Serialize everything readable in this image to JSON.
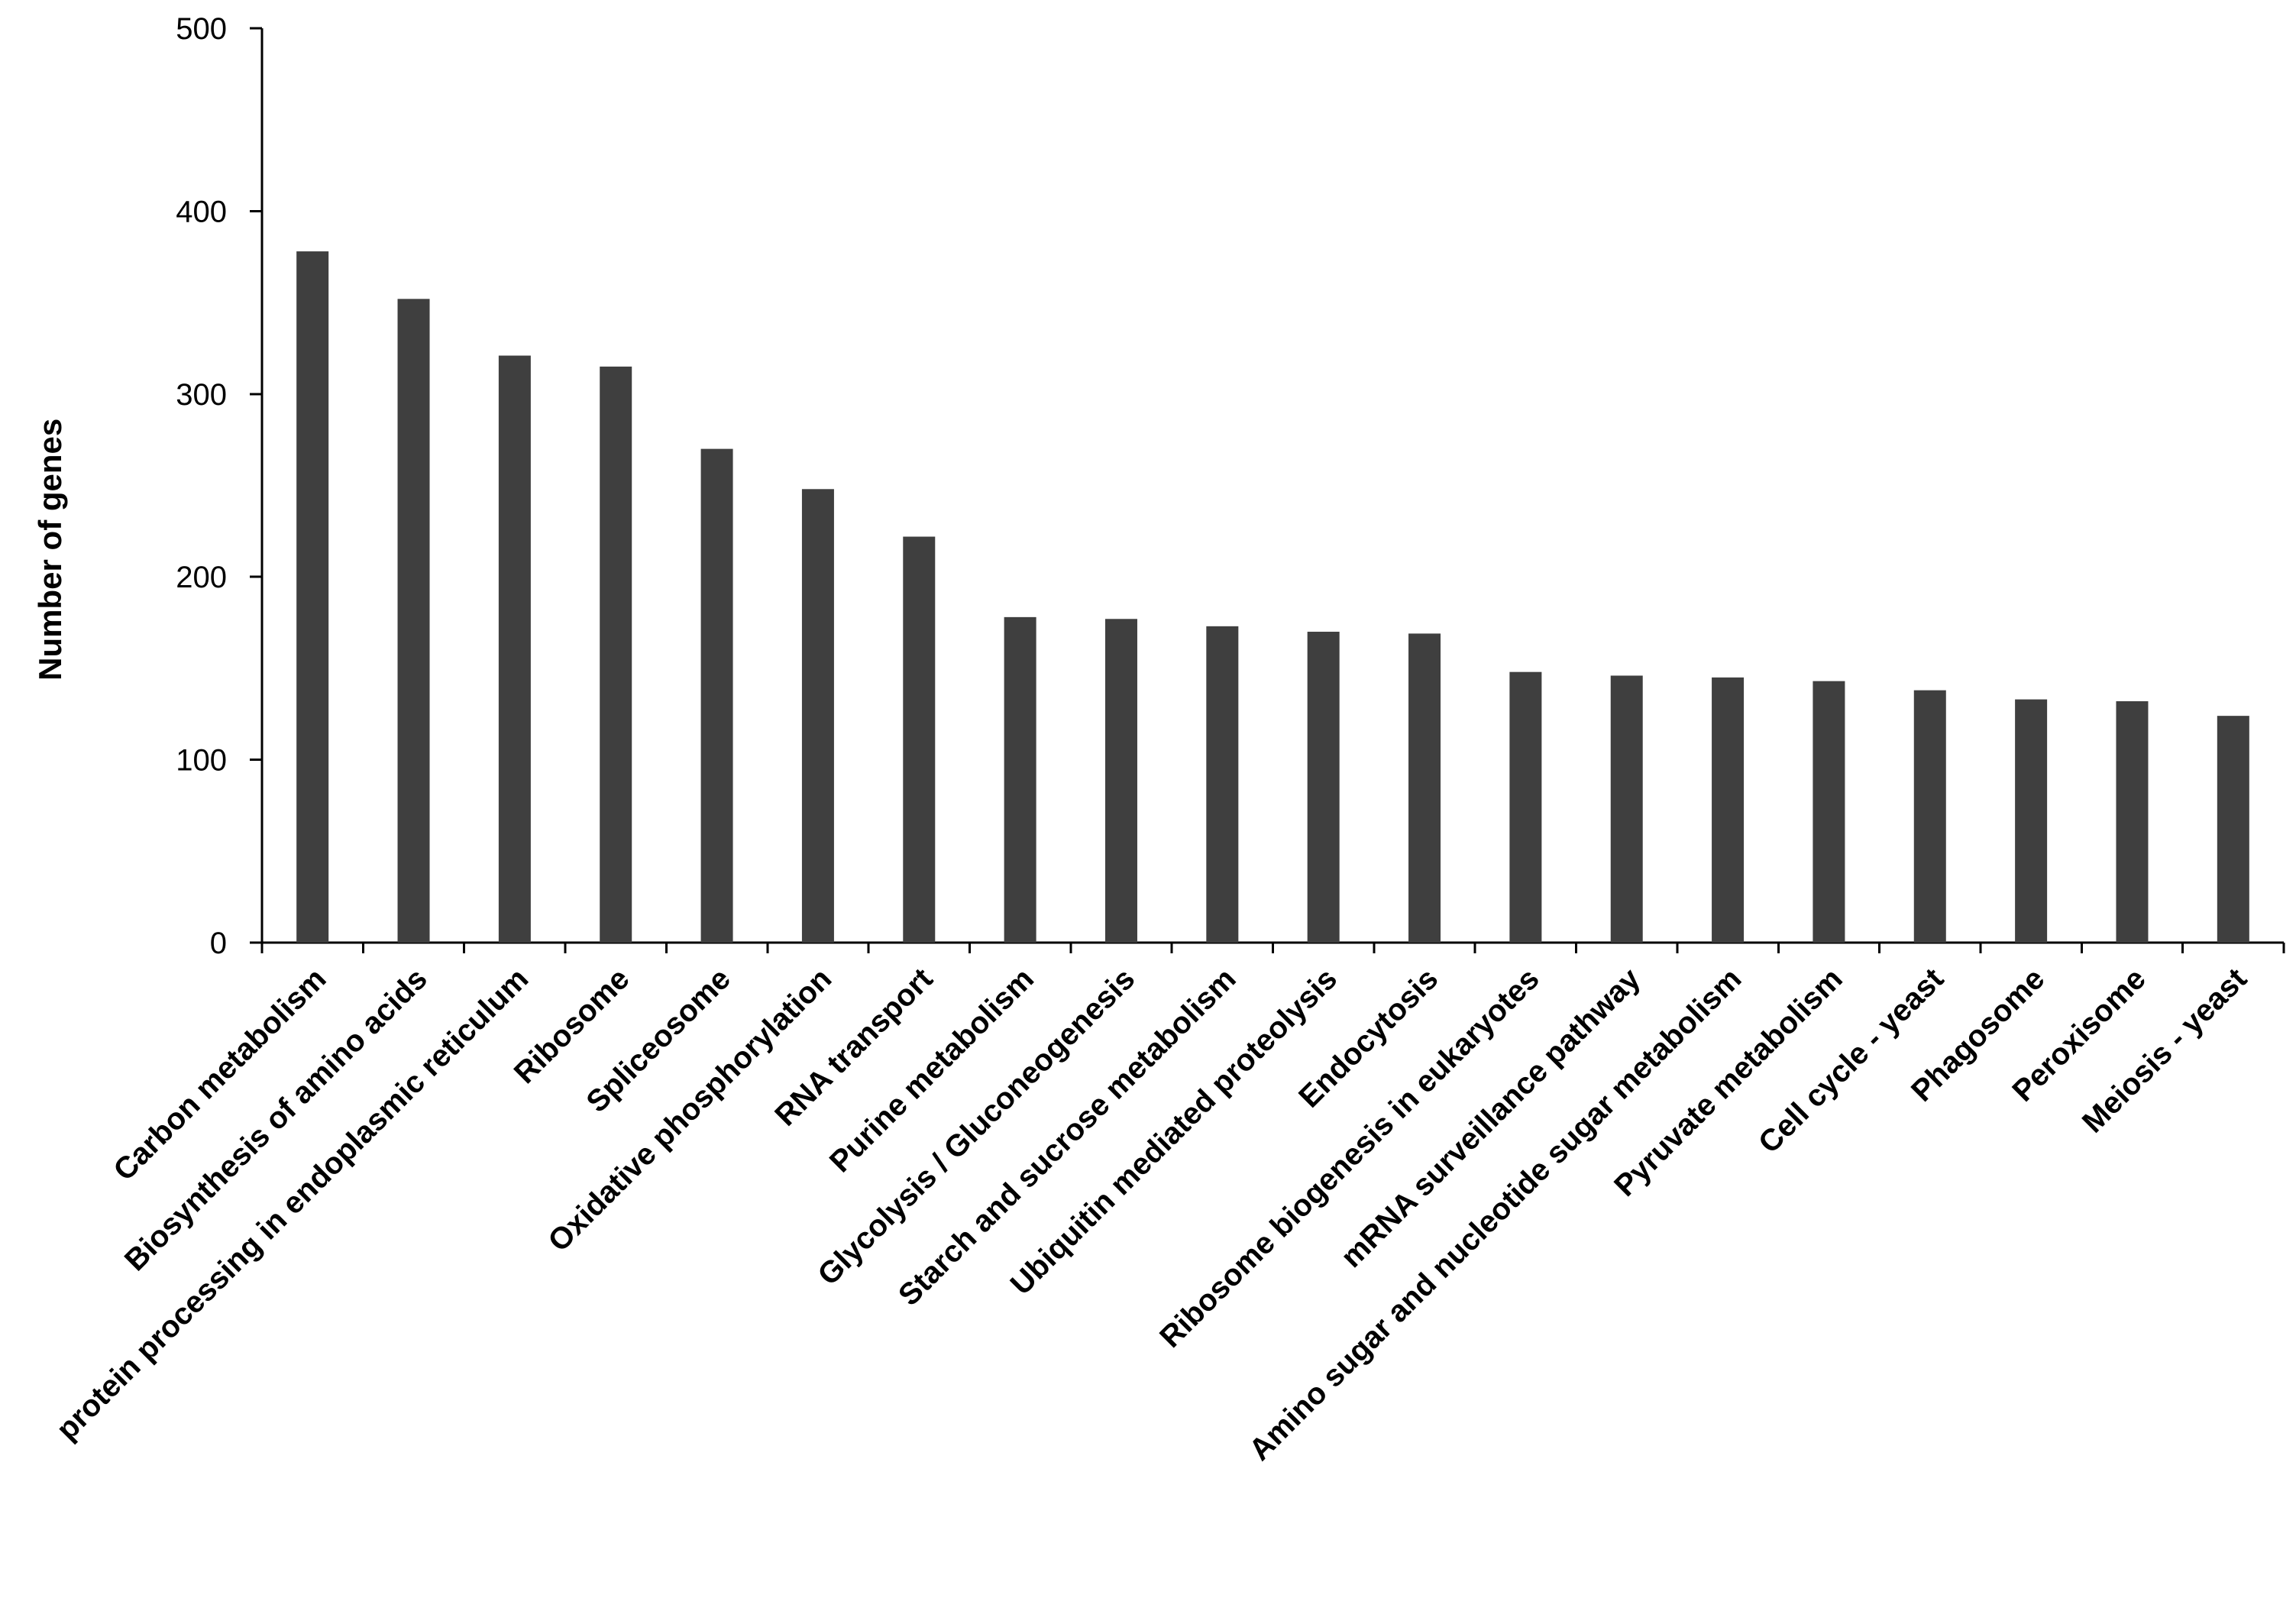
{
  "chart_data": {
    "type": "bar",
    "title": "",
    "xlabel": "",
    "ylabel": "Number of genes",
    "ylim": [
      0,
      500
    ],
    "yticks": [
      0,
      100,
      200,
      300,
      400,
      500
    ],
    "grid": false,
    "legend": "none",
    "bar_color": "#3f3f3f",
    "categories": [
      "Carbon metabolism",
      "Biosynthesis of amino acids",
      "protein processing in endoplasmic reticulum",
      "Ribosome",
      "Spliceosome",
      "Oxidative phosphorylation",
      "RNA transport",
      "Purine metabolism",
      "Glycolysis / Gluconeogenesis",
      "Starch and sucrose metabolism",
      "Ubiquitin mediated proteolysis",
      "Endocytosis",
      "Ribosome biogenesis in eukaryotes",
      "mRNA surveillance pathway",
      "Amino sugar and nucleotide sugar metabolism",
      "Pyruvate metabolism",
      "Cell cycle - yeast",
      "Phagosome",
      "Peroxisome",
      "Meiosis - yeast"
    ],
    "values": [
      378,
      352,
      321,
      315,
      270,
      248,
      222,
      178,
      177,
      173,
      170,
      169,
      148,
      146,
      145,
      143,
      138,
      133,
      132,
      124
    ]
  }
}
